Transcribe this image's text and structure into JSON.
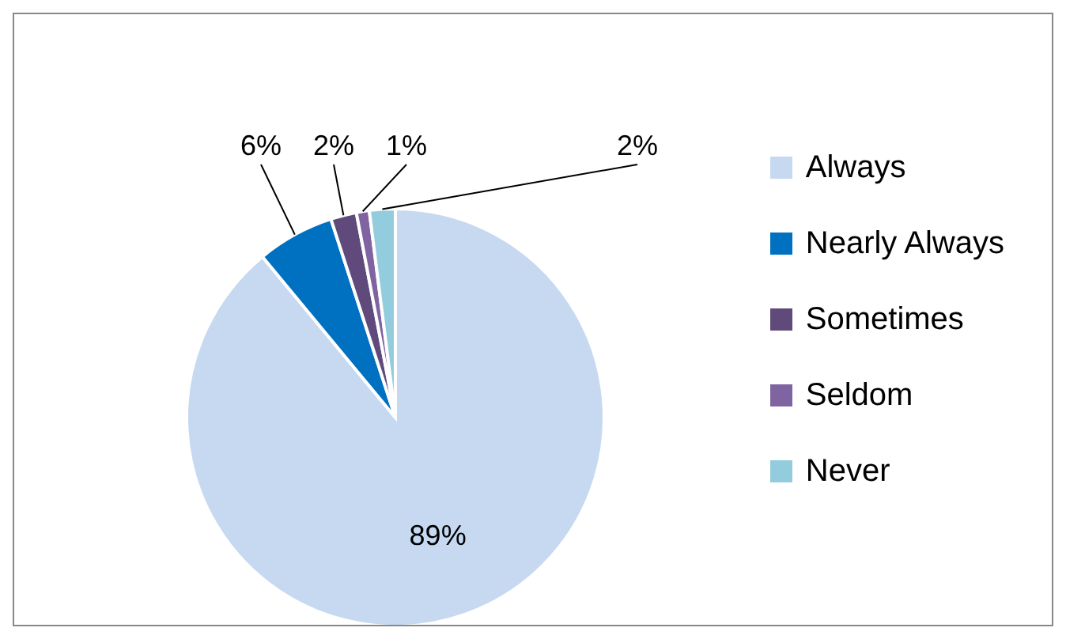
{
  "chart_data": {
    "type": "pie",
    "categories": [
      "Always",
      "Nearly Always",
      "Sometimes",
      "Seldom",
      "Never"
    ],
    "values": [
      89,
      6,
      2,
      1,
      2
    ],
    "value_labels": [
      "89%",
      "6%",
      "2%",
      "1%",
      "2%"
    ],
    "colors": [
      "#c6d9f1",
      "#0070c0",
      "#604a7b",
      "#8064a2",
      "#93cddd"
    ],
    "legend": "right"
  }
}
